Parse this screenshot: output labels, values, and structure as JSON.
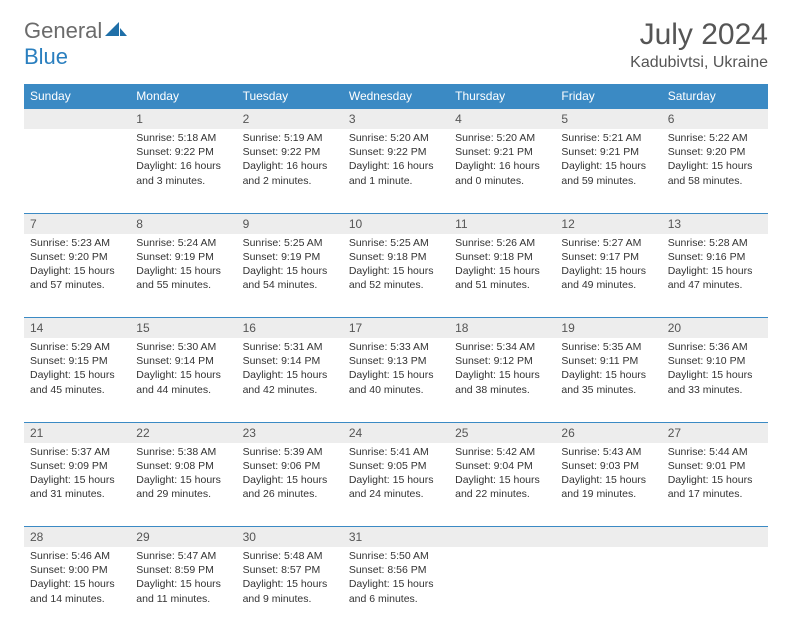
{
  "logo": {
    "text1": "General",
    "text2": "Blue"
  },
  "title": "July 2024",
  "location": "Kadubivtsi, Ukraine",
  "colors": {
    "header_bg": "#3b8ac4",
    "daynum_bg": "#ededed",
    "text": "#333333",
    "rule": "#3b8ac4"
  },
  "weekdays": [
    "Sunday",
    "Monday",
    "Tuesday",
    "Wednesday",
    "Thursday",
    "Friday",
    "Saturday"
  ],
  "weeks": [
    [
      null,
      {
        "n": "1",
        "sr": "Sunrise: 5:18 AM",
        "ss": "Sunset: 9:22 PM",
        "d1": "Daylight: 16 hours",
        "d2": "and 3 minutes."
      },
      {
        "n": "2",
        "sr": "Sunrise: 5:19 AM",
        "ss": "Sunset: 9:22 PM",
        "d1": "Daylight: 16 hours",
        "d2": "and 2 minutes."
      },
      {
        "n": "3",
        "sr": "Sunrise: 5:20 AM",
        "ss": "Sunset: 9:22 PM",
        "d1": "Daylight: 16 hours",
        "d2": "and 1 minute."
      },
      {
        "n": "4",
        "sr": "Sunrise: 5:20 AM",
        "ss": "Sunset: 9:21 PM",
        "d1": "Daylight: 16 hours",
        "d2": "and 0 minutes."
      },
      {
        "n": "5",
        "sr": "Sunrise: 5:21 AM",
        "ss": "Sunset: 9:21 PM",
        "d1": "Daylight: 15 hours",
        "d2": "and 59 minutes."
      },
      {
        "n": "6",
        "sr": "Sunrise: 5:22 AM",
        "ss": "Sunset: 9:20 PM",
        "d1": "Daylight: 15 hours",
        "d2": "and 58 minutes."
      }
    ],
    [
      {
        "n": "7",
        "sr": "Sunrise: 5:23 AM",
        "ss": "Sunset: 9:20 PM",
        "d1": "Daylight: 15 hours",
        "d2": "and 57 minutes."
      },
      {
        "n": "8",
        "sr": "Sunrise: 5:24 AM",
        "ss": "Sunset: 9:19 PM",
        "d1": "Daylight: 15 hours",
        "d2": "and 55 minutes."
      },
      {
        "n": "9",
        "sr": "Sunrise: 5:25 AM",
        "ss": "Sunset: 9:19 PM",
        "d1": "Daylight: 15 hours",
        "d2": "and 54 minutes."
      },
      {
        "n": "10",
        "sr": "Sunrise: 5:25 AM",
        "ss": "Sunset: 9:18 PM",
        "d1": "Daylight: 15 hours",
        "d2": "and 52 minutes."
      },
      {
        "n": "11",
        "sr": "Sunrise: 5:26 AM",
        "ss": "Sunset: 9:18 PM",
        "d1": "Daylight: 15 hours",
        "d2": "and 51 minutes."
      },
      {
        "n": "12",
        "sr": "Sunrise: 5:27 AM",
        "ss": "Sunset: 9:17 PM",
        "d1": "Daylight: 15 hours",
        "d2": "and 49 minutes."
      },
      {
        "n": "13",
        "sr": "Sunrise: 5:28 AM",
        "ss": "Sunset: 9:16 PM",
        "d1": "Daylight: 15 hours",
        "d2": "and 47 minutes."
      }
    ],
    [
      {
        "n": "14",
        "sr": "Sunrise: 5:29 AM",
        "ss": "Sunset: 9:15 PM",
        "d1": "Daylight: 15 hours",
        "d2": "and 45 minutes."
      },
      {
        "n": "15",
        "sr": "Sunrise: 5:30 AM",
        "ss": "Sunset: 9:14 PM",
        "d1": "Daylight: 15 hours",
        "d2": "and 44 minutes."
      },
      {
        "n": "16",
        "sr": "Sunrise: 5:31 AM",
        "ss": "Sunset: 9:14 PM",
        "d1": "Daylight: 15 hours",
        "d2": "and 42 minutes."
      },
      {
        "n": "17",
        "sr": "Sunrise: 5:33 AM",
        "ss": "Sunset: 9:13 PM",
        "d1": "Daylight: 15 hours",
        "d2": "and 40 minutes."
      },
      {
        "n": "18",
        "sr": "Sunrise: 5:34 AM",
        "ss": "Sunset: 9:12 PM",
        "d1": "Daylight: 15 hours",
        "d2": "and 38 minutes."
      },
      {
        "n": "19",
        "sr": "Sunrise: 5:35 AM",
        "ss": "Sunset: 9:11 PM",
        "d1": "Daylight: 15 hours",
        "d2": "and 35 minutes."
      },
      {
        "n": "20",
        "sr": "Sunrise: 5:36 AM",
        "ss": "Sunset: 9:10 PM",
        "d1": "Daylight: 15 hours",
        "d2": "and 33 minutes."
      }
    ],
    [
      {
        "n": "21",
        "sr": "Sunrise: 5:37 AM",
        "ss": "Sunset: 9:09 PM",
        "d1": "Daylight: 15 hours",
        "d2": "and 31 minutes."
      },
      {
        "n": "22",
        "sr": "Sunrise: 5:38 AM",
        "ss": "Sunset: 9:08 PM",
        "d1": "Daylight: 15 hours",
        "d2": "and 29 minutes."
      },
      {
        "n": "23",
        "sr": "Sunrise: 5:39 AM",
        "ss": "Sunset: 9:06 PM",
        "d1": "Daylight: 15 hours",
        "d2": "and 26 minutes."
      },
      {
        "n": "24",
        "sr": "Sunrise: 5:41 AM",
        "ss": "Sunset: 9:05 PM",
        "d1": "Daylight: 15 hours",
        "d2": "and 24 minutes."
      },
      {
        "n": "25",
        "sr": "Sunrise: 5:42 AM",
        "ss": "Sunset: 9:04 PM",
        "d1": "Daylight: 15 hours",
        "d2": "and 22 minutes."
      },
      {
        "n": "26",
        "sr": "Sunrise: 5:43 AM",
        "ss": "Sunset: 9:03 PM",
        "d1": "Daylight: 15 hours",
        "d2": "and 19 minutes."
      },
      {
        "n": "27",
        "sr": "Sunrise: 5:44 AM",
        "ss": "Sunset: 9:01 PM",
        "d1": "Daylight: 15 hours",
        "d2": "and 17 minutes."
      }
    ],
    [
      {
        "n": "28",
        "sr": "Sunrise: 5:46 AM",
        "ss": "Sunset: 9:00 PM",
        "d1": "Daylight: 15 hours",
        "d2": "and 14 minutes."
      },
      {
        "n": "29",
        "sr": "Sunrise: 5:47 AM",
        "ss": "Sunset: 8:59 PM",
        "d1": "Daylight: 15 hours",
        "d2": "and 11 minutes."
      },
      {
        "n": "30",
        "sr": "Sunrise: 5:48 AM",
        "ss": "Sunset: 8:57 PM",
        "d1": "Daylight: 15 hours",
        "d2": "and 9 minutes."
      },
      {
        "n": "31",
        "sr": "Sunrise: 5:50 AM",
        "ss": "Sunset: 8:56 PM",
        "d1": "Daylight: 15 hours",
        "d2": "and 6 minutes."
      },
      null,
      null,
      null
    ]
  ]
}
